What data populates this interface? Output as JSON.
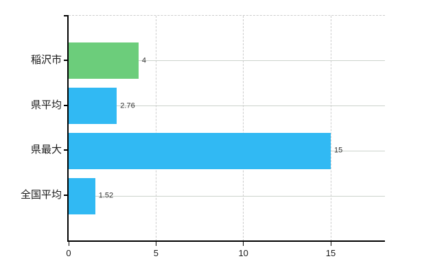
{
  "chart_data": {
    "type": "bar",
    "orientation": "horizontal",
    "title": "",
    "xlabel": "",
    "ylabel": "",
    "categories": [
      "稲沢市",
      "県平均",
      "県最大",
      "全国平均"
    ],
    "values": [
      4,
      2.76,
      15,
      1.52
    ],
    "value_labels": [
      "4",
      "2.76",
      "15",
      "1.52"
    ],
    "bar_colors": [
      "#6ccd7b",
      "#31b9f3",
      "#31b9f3",
      "#31b9f3"
    ],
    "xlim": [
      0,
      18.1
    ],
    "xticks": [
      0,
      5,
      10,
      15
    ],
    "xtick_labels": [
      "0",
      "5",
      "10",
      "15"
    ],
    "grid": true,
    "legend": "none",
    "colors": {
      "background": "#ffffff",
      "axis": "#000000",
      "gridline_horizontal": "#ccd2cc",
      "gridline_vertical": "#cccccc",
      "plot_border_top": "#cccccc",
      "value_label_text": "#333333",
      "tick_label_text": "#1a1a1a",
      "category_label_text": "#1a1a1a"
    }
  }
}
